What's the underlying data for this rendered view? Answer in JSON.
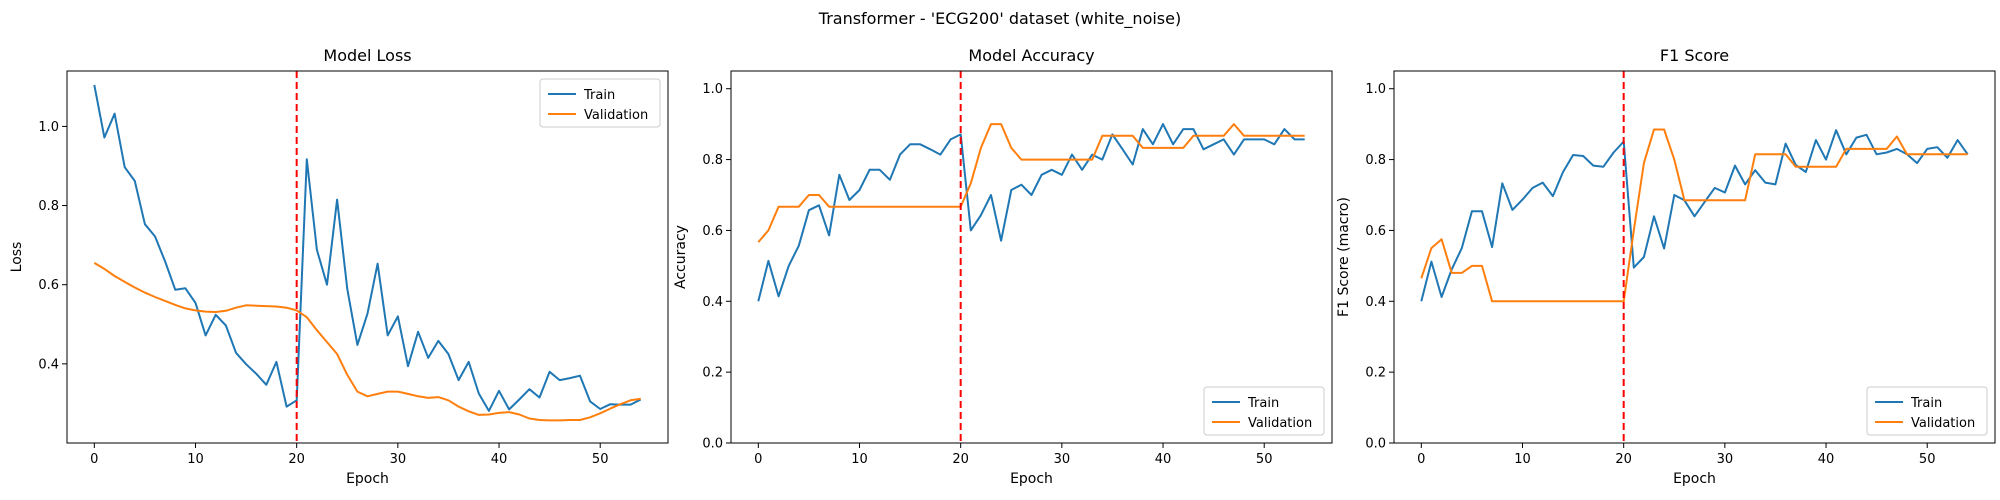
{
  "figure": {
    "suptitle": "Transformer - 'ECG200' dataset (white_noise)"
  },
  "colors": {
    "train": "#1f77b4",
    "validation": "#ff7f0e",
    "marker": "#ff0000"
  },
  "chart_data": [
    {
      "type": "line",
      "title": "Model Loss",
      "xlabel": "Epoch",
      "ylabel": "Loss",
      "xlim": [
        -2.7,
        56.7
      ],
      "ylim": [
        0.2,
        1.14
      ],
      "xticks": [
        0,
        10,
        20,
        30,
        40,
        50
      ],
      "yticks": [
        0.4,
        0.6,
        0.8,
        1.0
      ],
      "ytick_labels": [
        "0.4",
        "0.6",
        "0.8",
        "1.0"
      ],
      "vline": 20,
      "legend": "top-right",
      "series": [
        {
          "name": "Train",
          "values": [
            1.105,
            0.972,
            1.032,
            0.897,
            0.862,
            0.753,
            0.722,
            0.659,
            0.587,
            0.591,
            0.554,
            0.472,
            0.524,
            0.497,
            0.428,
            0.399,
            0.375,
            0.347,
            0.405,
            0.292,
            0.308,
            0.917,
            0.688,
            0.6,
            0.815,
            0.589,
            0.448,
            0.527,
            0.653,
            0.472,
            0.52,
            0.394,
            0.481,
            0.415,
            0.458,
            0.425,
            0.359,
            0.405,
            0.325,
            0.281,
            0.332,
            0.285,
            0.31,
            0.336,
            0.315,
            0.38,
            0.359,
            0.364,
            0.37,
            0.305,
            0.286,
            0.298,
            0.297,
            0.297,
            0.31
          ]
        },
        {
          "name": "Validation",
          "values": [
            0.655,
            0.64,
            0.622,
            0.607,
            0.593,
            0.58,
            0.569,
            0.559,
            0.549,
            0.54,
            0.535,
            0.532,
            0.531,
            0.534,
            0.542,
            0.548,
            0.547,
            0.546,
            0.545,
            0.542,
            0.535,
            0.518,
            0.485,
            0.455,
            0.425,
            0.372,
            0.33,
            0.318,
            0.324,
            0.33,
            0.33,
            0.324,
            0.318,
            0.314,
            0.316,
            0.308,
            0.292,
            0.28,
            0.271,
            0.272,
            0.276,
            0.278,
            0.272,
            0.262,
            0.258,
            0.257,
            0.257,
            0.258,
            0.258,
            0.265,
            0.275,
            0.287,
            0.298,
            0.308,
            0.312
          ]
        }
      ]
    },
    {
      "type": "line",
      "title": "Model Accuracy",
      "xlabel": "Epoch",
      "ylabel": "Accuracy",
      "xlim": [
        -2.7,
        56.7
      ],
      "ylim": [
        0.0,
        1.05
      ],
      "xticks": [
        0,
        10,
        20,
        30,
        40,
        50
      ],
      "yticks": [
        0.0,
        0.2,
        0.4,
        0.6,
        0.8,
        1.0
      ],
      "ytick_labels": [
        "0.0",
        "0.2",
        "0.4",
        "0.6",
        "0.8",
        "1.0"
      ],
      "vline": 20,
      "legend": "bottom-right",
      "series": [
        {
          "name": "Train",
          "values": [
            0.4,
            0.514,
            0.414,
            0.5,
            0.557,
            0.657,
            0.671,
            0.586,
            0.757,
            0.686,
            0.714,
            0.771,
            0.771,
            0.743,
            0.814,
            0.843,
            0.843,
            0.829,
            0.814,
            0.857,
            0.871,
            0.6,
            0.643,
            0.7,
            0.571,
            0.714,
            0.729,
            0.7,
            0.757,
            0.771,
            0.757,
            0.814,
            0.771,
            0.814,
            0.8,
            0.871,
            0.829,
            0.786,
            0.886,
            0.843,
            0.9,
            0.843,
            0.886,
            0.886,
            0.829,
            0.843,
            0.857,
            0.814,
            0.857,
            0.857,
            0.857,
            0.843,
            0.886,
            0.857,
            0.857
          ]
        },
        {
          "name": "Validation",
          "values": [
            0.567,
            0.6,
            0.667,
            0.667,
            0.667,
            0.7,
            0.7,
            0.667,
            0.667,
            0.667,
            0.667,
            0.667,
            0.667,
            0.667,
            0.667,
            0.667,
            0.667,
            0.667,
            0.667,
            0.667,
            0.667,
            0.733,
            0.833,
            0.9,
            0.9,
            0.833,
            0.8,
            0.8,
            0.8,
            0.8,
            0.8,
            0.8,
            0.8,
            0.8,
            0.867,
            0.867,
            0.867,
            0.867,
            0.833,
            0.833,
            0.833,
            0.833,
            0.833,
            0.867,
            0.867,
            0.867,
            0.867,
            0.9,
            0.867,
            0.867,
            0.867,
            0.867,
            0.867,
            0.867,
            0.867
          ]
        }
      ]
    },
    {
      "type": "line",
      "title": "F1 Score",
      "xlabel": "Epoch",
      "ylabel": "F1 Score (macro)",
      "xlim": [
        -2.7,
        56.7
      ],
      "ylim": [
        0.0,
        1.05
      ],
      "xticks": [
        0,
        10,
        20,
        30,
        40,
        50
      ],
      "yticks": [
        0.0,
        0.2,
        0.4,
        0.6,
        0.8,
        1.0
      ],
      "ytick_labels": [
        "0.0",
        "0.2",
        "0.4",
        "0.6",
        "0.8",
        "1.0"
      ],
      "vline": 20,
      "legend": "bottom-right",
      "series": [
        {
          "name": "Train",
          "values": [
            0.4,
            0.512,
            0.412,
            0.49,
            0.55,
            0.654,
            0.654,
            0.553,
            0.733,
            0.658,
            0.687,
            0.72,
            0.735,
            0.697,
            0.765,
            0.813,
            0.81,
            0.783,
            0.78,
            0.82,
            0.851,
            0.495,
            0.525,
            0.64,
            0.549,
            0.7,
            0.685,
            0.64,
            0.68,
            0.72,
            0.707,
            0.783,
            0.73,
            0.77,
            0.735,
            0.73,
            0.845,
            0.785,
            0.765,
            0.855,
            0.8,
            0.883,
            0.815,
            0.862,
            0.87,
            0.815,
            0.82,
            0.83,
            0.815,
            0.79,
            0.83,
            0.835,
            0.805,
            0.855,
            0.815
          ]
        },
        {
          "name": "Validation",
          "values": [
            0.465,
            0.55,
            0.575,
            0.48,
            0.48,
            0.5,
            0.5,
            0.4,
            0.4,
            0.4,
            0.4,
            0.4,
            0.4,
            0.4,
            0.4,
            0.4,
            0.4,
            0.4,
            0.4,
            0.4,
            0.4,
            0.6,
            0.79,
            0.885,
            0.885,
            0.8,
            0.685,
            0.685,
            0.685,
            0.685,
            0.685,
            0.685,
            0.685,
            0.815,
            0.815,
            0.815,
            0.815,
            0.78,
            0.78,
            0.78,
            0.78,
            0.78,
            0.83,
            0.83,
            0.83,
            0.83,
            0.83,
            0.865,
            0.815,
            0.815,
            0.815,
            0.815,
            0.815,
            0.815,
            0.815
          ]
        }
      ]
    }
  ]
}
